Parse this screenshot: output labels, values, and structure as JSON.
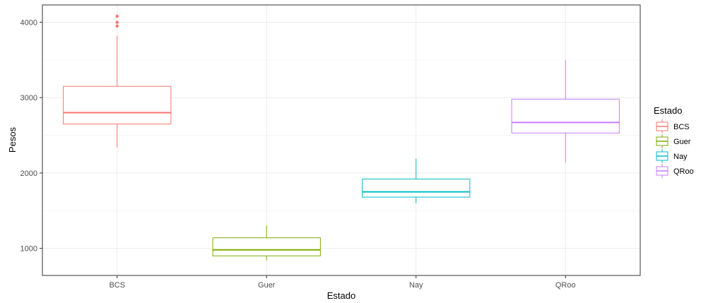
{
  "chart_data": {
    "type": "boxplot",
    "xlabel": "Estado",
    "ylabel": "Pesos",
    "categories": [
      "BCS",
      "Guer",
      "Nay",
      "QRoo"
    ],
    "ylim": [
      640,
      4230
    ],
    "yticks": [
      1000,
      2000,
      3000,
      4000
    ],
    "grid": true,
    "legend": {
      "title": "Estado",
      "position": "right"
    },
    "series": [
      {
        "name": "BCS",
        "color": "#F8766D",
        "min": 2340,
        "q1": 2650,
        "median": 2800,
        "q3": 3150,
        "max": 3820,
        "outliers": [
          3950,
          4000,
          4080
        ]
      },
      {
        "name": "Guer",
        "color": "#7CAE00",
        "min": 840,
        "q1": 900,
        "median": 980,
        "q3": 1140,
        "max": 1300,
        "outliers": []
      },
      {
        "name": "Nay",
        "color": "#00BFC4",
        "min": 1600,
        "q1": 1680,
        "median": 1750,
        "q3": 1920,
        "max": 2190,
        "outliers": []
      },
      {
        "name": "QRoo",
        "color": "#C77CFF",
        "min": 2140,
        "q1": 2530,
        "median": 2670,
        "q3": 2980,
        "max": 3500,
        "outliers": []
      }
    ]
  }
}
